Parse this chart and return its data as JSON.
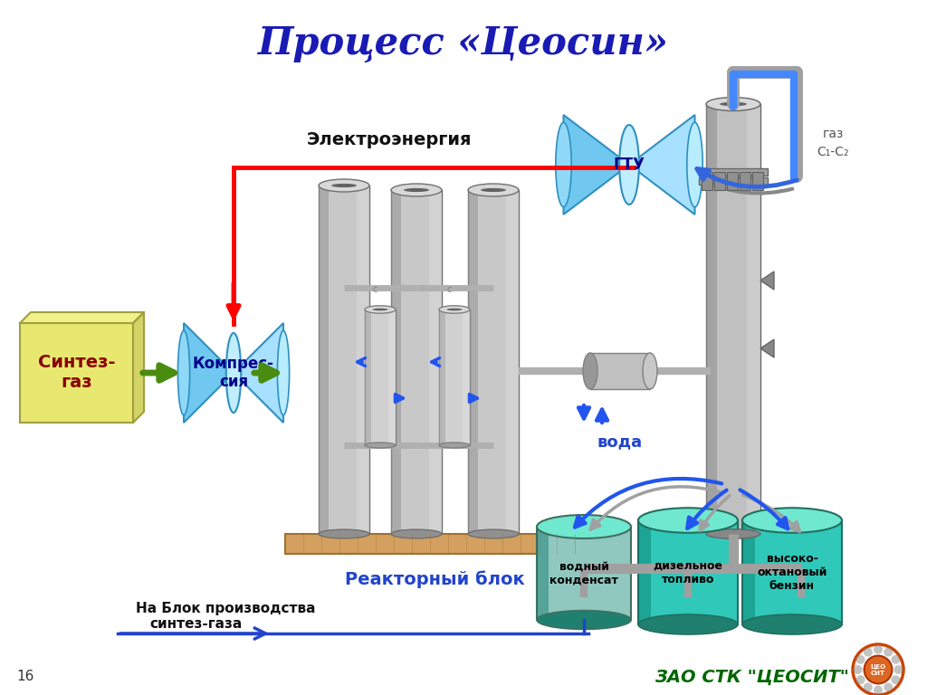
{
  "title": "Процесс «Цеосин»",
  "title_color": "#1a1ab5",
  "bg_color": "#FFFFFF",
  "slide_number": "16",
  "company": "ЗАО СТК \"ЦЕОСИТ\"",
  "company_color": "#006600",
  "synth_gas": "Синтез-\nгаз",
  "compression": "Компрес-\nсия",
  "reactor": "Реакторный блок",
  "electro": "Электроэнергия",
  "gtu": "ГТУ",
  "gas_c1c2_line1": "газ",
  "gas_c1c2_line2": "С₁-С₂",
  "water": "вода",
  "water_cond": "водный\nконденсат",
  "diesel": "дизельное\nтопливо",
  "gasoline": "высоко-\nоктановый\nбензин",
  "to_synth_line1": "На Блок производства",
  "to_synth_line2": "синтез-газа"
}
